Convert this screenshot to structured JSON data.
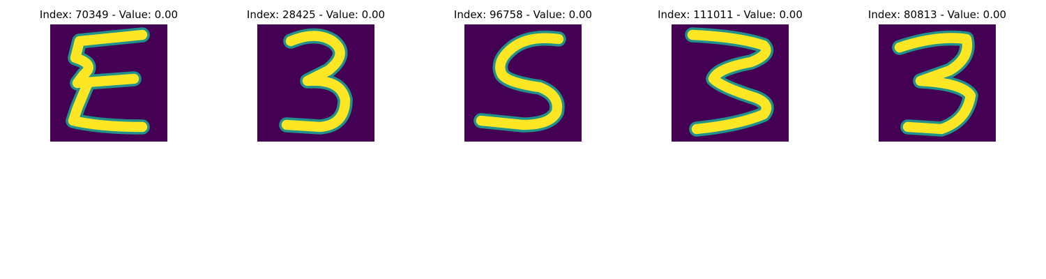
{
  "panels": [
    {
      "title": "Index: 70349 - Value: 0.00",
      "digit": "3",
      "variant": "reversed-e"
    },
    {
      "title": "Index: 28425 - Value: 0.00",
      "digit": "3",
      "variant": "plain"
    },
    {
      "title": "Index: 96758 - Value: 0.00",
      "digit": "5",
      "variant": "s-shape"
    },
    {
      "title": "Index: 111011 - Value: 0.00",
      "digit": "3",
      "variant": "wide"
    },
    {
      "title": "Index: 80813 - Value: 0.00",
      "digit": "3",
      "variant": "tall"
    }
  ],
  "colors": {
    "background": "#440154",
    "mid": "#21918c",
    "stroke": "#fde725",
    "edge": "#5ec962"
  }
}
